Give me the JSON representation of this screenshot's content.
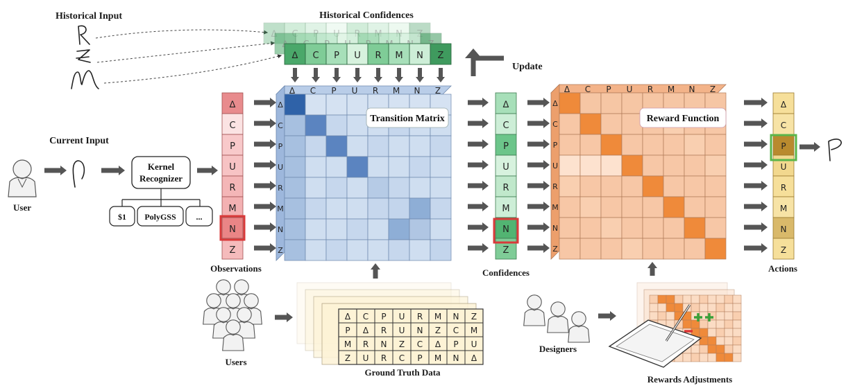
{
  "labels": {
    "historical_input": "Historical Input",
    "historical_confidences": "Historical Confidences",
    "update": "Update",
    "current_input": "Current Input",
    "user": "User",
    "kernel_recognizer_line1": "Kernel",
    "kernel_recognizer_line2": "Recognizer",
    "observations": "Observations",
    "transition_matrix": "Transition Matrix",
    "confidences": "Confidences",
    "reward_function": "Reward Function",
    "actions": "Actions",
    "users": "Users",
    "ground_truth_data": "Ground Truth Data",
    "designers": "Designers",
    "rewards_adjustments": "Rewards Adjustments"
  },
  "recognizers": [
    "$1",
    "PolyGSS",
    "..."
  ],
  "symbols": [
    "ᐃ",
    "C",
    "P",
    "U",
    "R",
    "M",
    "N",
    "Z"
  ],
  "ground_truth_rows": [
    [
      "ᐃ",
      "C",
      "P",
      "U",
      "R",
      "M",
      "N",
      "Z"
    ],
    [
      "P",
      "ᐃ",
      "R",
      "U",
      "N",
      "Z",
      "C",
      "M"
    ],
    [
      "M",
      "R",
      "N",
      "Z",
      "C",
      "ᐃ",
      "P",
      "U"
    ],
    [
      "Z",
      "U",
      "R",
      "C",
      "P",
      "M",
      "N",
      "ᐃ"
    ]
  ],
  "colors": {
    "observations": [
      "#e88b8d",
      "#fbe3e3",
      "#f8c9ca",
      "#f7c3c4",
      "#f4b6b7",
      "#f3b1b2",
      "#ea8586",
      "#f5bbbc"
    ],
    "confidences": [
      "#a7dfb9",
      "#cdeed7",
      "#6cc58a",
      "#d7f2de",
      "#c0e8cb",
      "#cdeed7",
      "#52b472",
      "#7fcc97"
    ],
    "historical": [
      "#4aa86a",
      "#7fcc97",
      "#a7dfb9",
      "#d7f2de",
      "#7fcc97",
      "#a7dfb9",
      "#cdeed7",
      "#3f9a5e"
    ],
    "actions": [
      "#f6df9a",
      "#f7e3a6",
      "#b98a2e",
      "#f2d88e",
      "#f6df9a",
      "#f7e3a6",
      "#d9b96a",
      "#f6df9a"
    ],
    "highlight_red": "#d93a3a",
    "highlight_green": "#5ab54a",
    "arrow": "#555555"
  }
}
